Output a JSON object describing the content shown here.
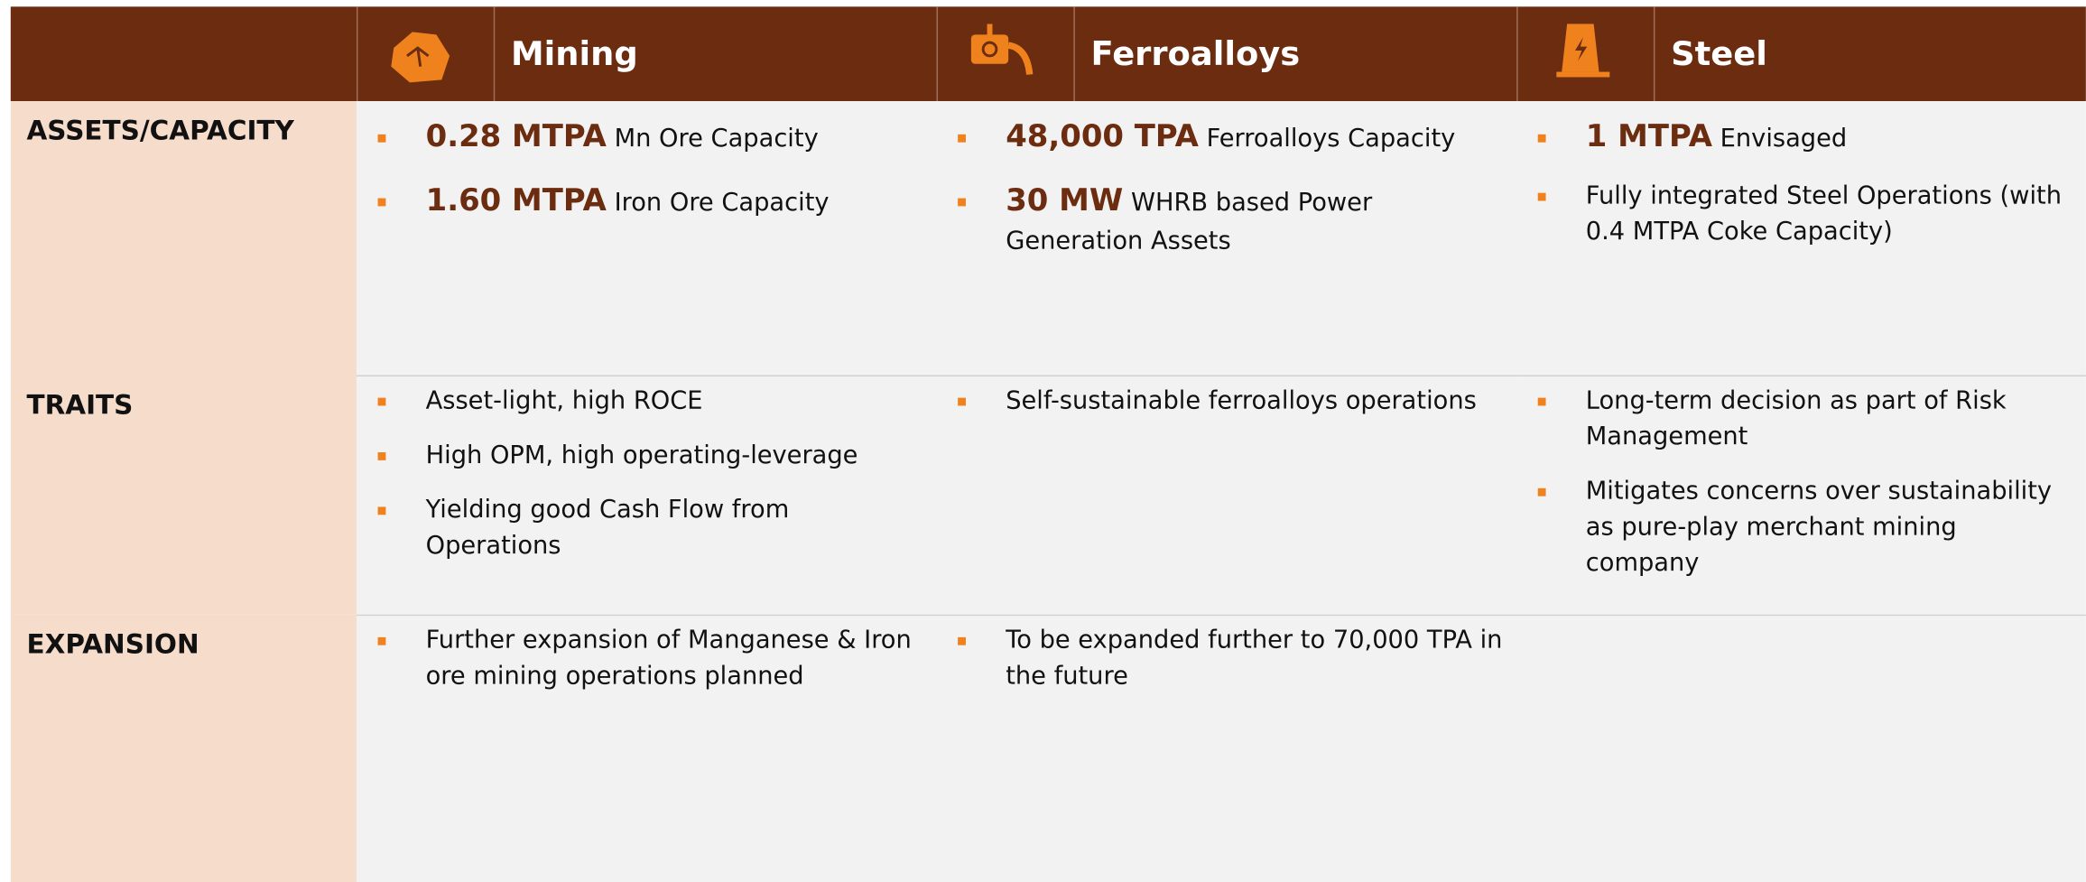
{
  "header": {
    "columns": [
      "Mining",
      "Ferroalloys",
      "Steel"
    ]
  },
  "rows": [
    {
      "label": "ASSETS/CAPACITY",
      "cells": [
        [
          {
            "highlight": "0.28 MTPA",
            "text": "Mn Ore Capacity"
          },
          {
            "highlight": "1.60 MTPA",
            "text": "Iron Ore Capacity"
          }
        ],
        [
          {
            "highlight": "48,000 TPA",
            "text": "Ferroalloys Capacity"
          },
          {
            "highlight": "30 MW",
            "text": "WHRB based Power Generation Assets"
          }
        ],
        [
          {
            "highlight": "1 MTPA",
            "text": "Envisaged"
          },
          {
            "text": "Fully integrated Steel Operations (with 0.4 MTPA Coke Capacity)"
          }
        ]
      ]
    },
    {
      "label": "TRAITS",
      "cells": [
        [
          {
            "text": "Asset-light, high ROCE"
          },
          {
            "text": "High OPM, high operating-leverage"
          },
          {
            "text": "Yielding good Cash Flow from Operations"
          }
        ],
        [
          {
            "text": "Self-sustainable ferroalloys operations"
          }
        ],
        [
          {
            "text": "Long-term decision as part of Risk Management"
          },
          {
            "text": "Mitigates concerns over sustainability as pure-play merchant mining company"
          }
        ]
      ]
    },
    {
      "label": "EXPANSION",
      "cells": [
        [
          {
            "text": "Further expansion of Manganese & Iron ore mining operations planned"
          }
        ],
        [
          {
            "text": "To be expanded further to 70,000 TPA in the future"
          }
        ],
        []
      ]
    }
  ]
}
